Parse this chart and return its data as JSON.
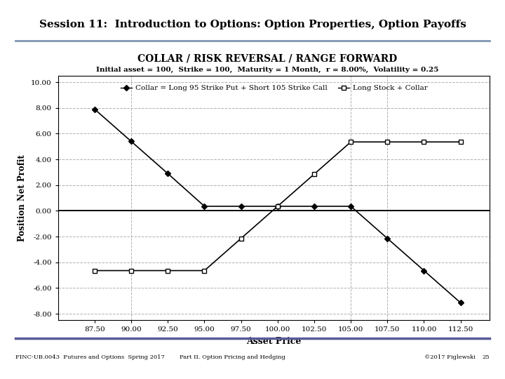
{
  "title": "COLLAR / RISK REVERSAL / RANGE FORWARD",
  "subtitle": "Initial asset = 100,  Strike = 100,  Maturity = 1 Month,  r = 8.00%,  Volatility = 0.25",
  "header": "Session 11:  Introduction to Options: Option Properties, Option Payoffs",
  "xlabel": "Asset Price",
  "ylabel": "Position Net Profit",
  "footer_left": "FINC-UB.0043  Futures and Options  Spring 2017",
  "footer_mid": "Part II. Option Pricing and Hedging",
  "footer_right": "©2017 Figlewski",
  "footer_page": "25",
  "xlim": [
    85.0,
    114.5
  ],
  "ylim": [
    -8.5,
    10.5
  ],
  "xticks": [
    87.5,
    90.0,
    92.5,
    95.0,
    97.5,
    100.0,
    102.5,
    105.0,
    107.5,
    110.0,
    112.5
  ],
  "yticks": [
    -8.0,
    -6.0,
    -4.0,
    -2.0,
    0.0,
    2.0,
    4.0,
    6.0,
    8.0,
    10.0
  ],
  "collar_x": [
    87.5,
    90.0,
    92.5,
    95.0,
    97.5,
    100.0,
    102.5,
    105.0,
    107.5,
    110.0,
    112.5
  ],
  "collar_y": [
    7.9,
    5.4,
    2.9,
    0.36,
    0.36,
    0.36,
    0.36,
    0.36,
    -2.14,
    -4.64,
    -7.14
  ],
  "stock_collar_x": [
    87.5,
    90.0,
    92.5,
    95.0,
    97.5,
    100.0,
    102.5,
    105.0,
    107.5,
    110.0,
    112.5
  ],
  "stock_collar_y": [
    -4.64,
    -4.64,
    -4.64,
    -4.64,
    -2.14,
    0.36,
    2.86,
    5.36,
    5.36,
    5.36,
    5.36
  ],
  "vline_x": [
    90.0,
    105.0,
    107.5
  ],
  "legend_collar": "Collar = Long 95 Strike Put + Short 105 Strike Call",
  "legend_stock": "Long Stock + Collar",
  "line_color": "#000000",
  "bg_color": "#ffffff",
  "header_bg": "#adc6e0",
  "header_border": "#7f96b2",
  "footer_line_color": "#595997",
  "grid_color": "#b0b0b0"
}
